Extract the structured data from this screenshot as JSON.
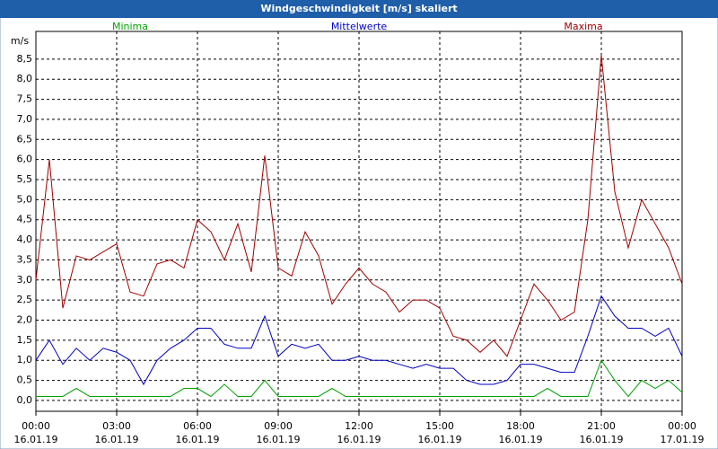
{
  "chart_data": {
    "type": "line",
    "title": "Windgeschwindigkeit [m/s] skaliert",
    "y_label": "m/s",
    "x": [
      0,
      0.5,
      1,
      1.5,
      2,
      2.5,
      3,
      3.5,
      4,
      4.5,
      5,
      5.5,
      6,
      6.5,
      7,
      7.5,
      8,
      8.5,
      9,
      9.5,
      10,
      10.5,
      11,
      11.5,
      12,
      12.5,
      13,
      13.5,
      14,
      14.5,
      15,
      15.5,
      16,
      16.5,
      17,
      17.5,
      18,
      18.5,
      19,
      19.5,
      20,
      20.5,
      21,
      21.5,
      22,
      22.5,
      23,
      23.5,
      24
    ],
    "series": [
      {
        "name": "Minima",
        "color": "#00a000",
        "values": [
          0.1,
          0.1,
          0.1,
          0.3,
          0.1,
          0.1,
          0.1,
          0.1,
          0.1,
          0.1,
          0.1,
          0.3,
          0.3,
          0.1,
          0.4,
          0.1,
          0.1,
          0.5,
          0.1,
          0.1,
          0.1,
          0.1,
          0.3,
          0.1,
          0.1,
          0.1,
          0.1,
          0.1,
          0.1,
          0.1,
          0.1,
          0.1,
          0.1,
          0.1,
          0.1,
          0.1,
          0.1,
          0.1,
          0.3,
          0.1,
          0.1,
          0.1,
          1.0,
          0.5,
          0.1,
          0.5,
          0.3,
          0.5,
          0.2
        ]
      },
      {
        "name": "Mittelwerte",
        "color": "#0000c0",
        "values": [
          1.0,
          1.5,
          0.9,
          1.3,
          1.0,
          1.3,
          1.2,
          1.0,
          0.4,
          1.0,
          1.3,
          1.5,
          1.8,
          1.8,
          1.4,
          1.3,
          1.3,
          2.1,
          1.1,
          1.4,
          1.3,
          1.4,
          1.0,
          1.0,
          1.1,
          1.0,
          1.0,
          0.9,
          0.8,
          0.9,
          0.8,
          0.8,
          0.5,
          0.4,
          0.4,
          0.5,
          0.9,
          0.9,
          0.8,
          0.7,
          0.7,
          1.6,
          2.6,
          2.1,
          1.8,
          1.8,
          1.6,
          1.8,
          1.1
        ]
      },
      {
        "name": "Maxima",
        "color": "#a00000",
        "values": [
          3.0,
          6.0,
          2.3,
          3.6,
          3.5,
          3.7,
          3.9,
          2.7,
          2.6,
          3.4,
          3.5,
          3.3,
          4.5,
          4.2,
          3.5,
          4.4,
          3.2,
          6.1,
          3.3,
          3.1,
          4.2,
          3.6,
          2.4,
          2.9,
          3.3,
          2.9,
          2.7,
          2.2,
          2.5,
          2.5,
          2.3,
          1.6,
          1.5,
          1.2,
          1.5,
          1.1,
          2.0,
          2.9,
          2.5,
          2.0,
          2.2,
          4.5,
          8.6,
          5.2,
          3.8,
          5.0,
          4.4,
          3.8,
          2.9
        ]
      }
    ],
    "xlim": [
      0,
      24
    ],
    "xticks": [
      {
        "value": 0,
        "label": "00:00 16.01.19"
      },
      {
        "value": 3,
        "label": "03:00 16.01.19"
      },
      {
        "value": 6,
        "label": "06:00 16.01.19"
      },
      {
        "value": 9,
        "label": "09:00 16.01.19"
      },
      {
        "value": 12,
        "label": "12:00 16.01.19"
      },
      {
        "value": 15,
        "label": "15:00 16.01.19"
      },
      {
        "value": 18,
        "label": "18:00 16.01.19"
      },
      {
        "value": 21,
        "label": "21:00 16.01.19"
      },
      {
        "value": 24,
        "label": "00:00 17.01.19"
      }
    ],
    "ylim": [
      -0.27,
      9.19
    ],
    "yticks": [
      {
        "value": 0,
        "label": "0,0"
      },
      {
        "value": 0.5,
        "label": "0,5"
      },
      {
        "value": 1,
        "label": "1,0"
      },
      {
        "value": 1.5,
        "label": "1,5"
      },
      {
        "value": 2,
        "label": "2,0"
      },
      {
        "value": 2.5,
        "label": "2,5"
      },
      {
        "value": 3,
        "label": "3,0"
      },
      {
        "value": 3.5,
        "label": "3,5"
      },
      {
        "value": 4,
        "label": "4,0"
      },
      {
        "value": 4.5,
        "label": "4,5"
      },
      {
        "value": 5,
        "label": "5,0"
      },
      {
        "value": 5.5,
        "label": "5,5"
      },
      {
        "value": 6,
        "label": "6,0"
      },
      {
        "value": 6.5,
        "label": "6,5"
      },
      {
        "value": 7,
        "label": "7,0"
      },
      {
        "value": 7.5,
        "label": "7,5"
      },
      {
        "value": 8,
        "label": "8,0"
      },
      {
        "value": 8.5,
        "label": "8,5"
      }
    ],
    "grid": true
  }
}
